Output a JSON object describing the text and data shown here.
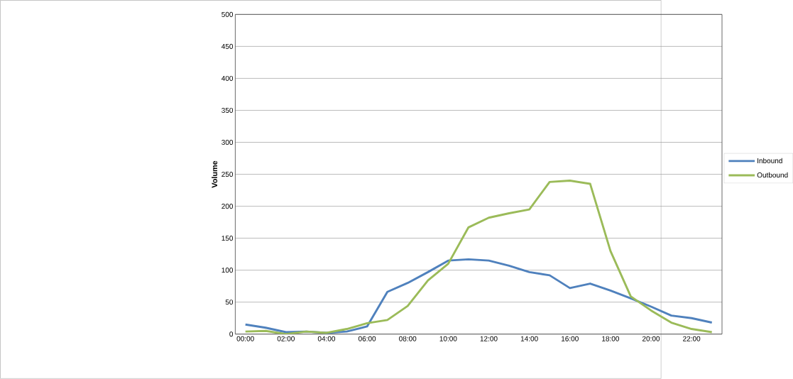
{
  "chart_data": {
    "type": "line",
    "ylabel": "Volume",
    "categories": [
      "00:00",
      null,
      "02:00",
      null,
      "04:00",
      null,
      "06:00",
      null,
      "08:00",
      null,
      "10:00",
      null,
      "12:00",
      null,
      "14:00",
      null,
      "16:00",
      null,
      "18:00",
      null,
      "20:00",
      null,
      "22:00",
      null
    ],
    "series": [
      {
        "name": "Inbound",
        "color": "#4f81bd",
        "values": [
          15,
          10,
          3,
          4,
          2,
          4,
          12,
          66,
          80,
          97,
          115,
          117,
          115,
          107,
          97,
          92,
          72,
          79,
          68,
          56,
          43,
          29,
          25,
          18
        ]
      },
      {
        "name": "Outbound",
        "color": "#9bbb59",
        "values": [
          4,
          5,
          0,
          4,
          2,
          8,
          17,
          22,
          44,
          84,
          110,
          167,
          182,
          189,
          195,
          238,
          240,
          235,
          130,
          59,
          37,
          18,
          8,
          3
        ]
      }
    ],
    "ylim": [
      0,
      500
    ],
    "yticks": [
      0,
      50,
      100,
      150,
      200,
      250,
      300,
      350,
      400,
      450,
      500
    ],
    "grid": "y",
    "legend": "right",
    "marker": "none",
    "line_style": "solid"
  }
}
